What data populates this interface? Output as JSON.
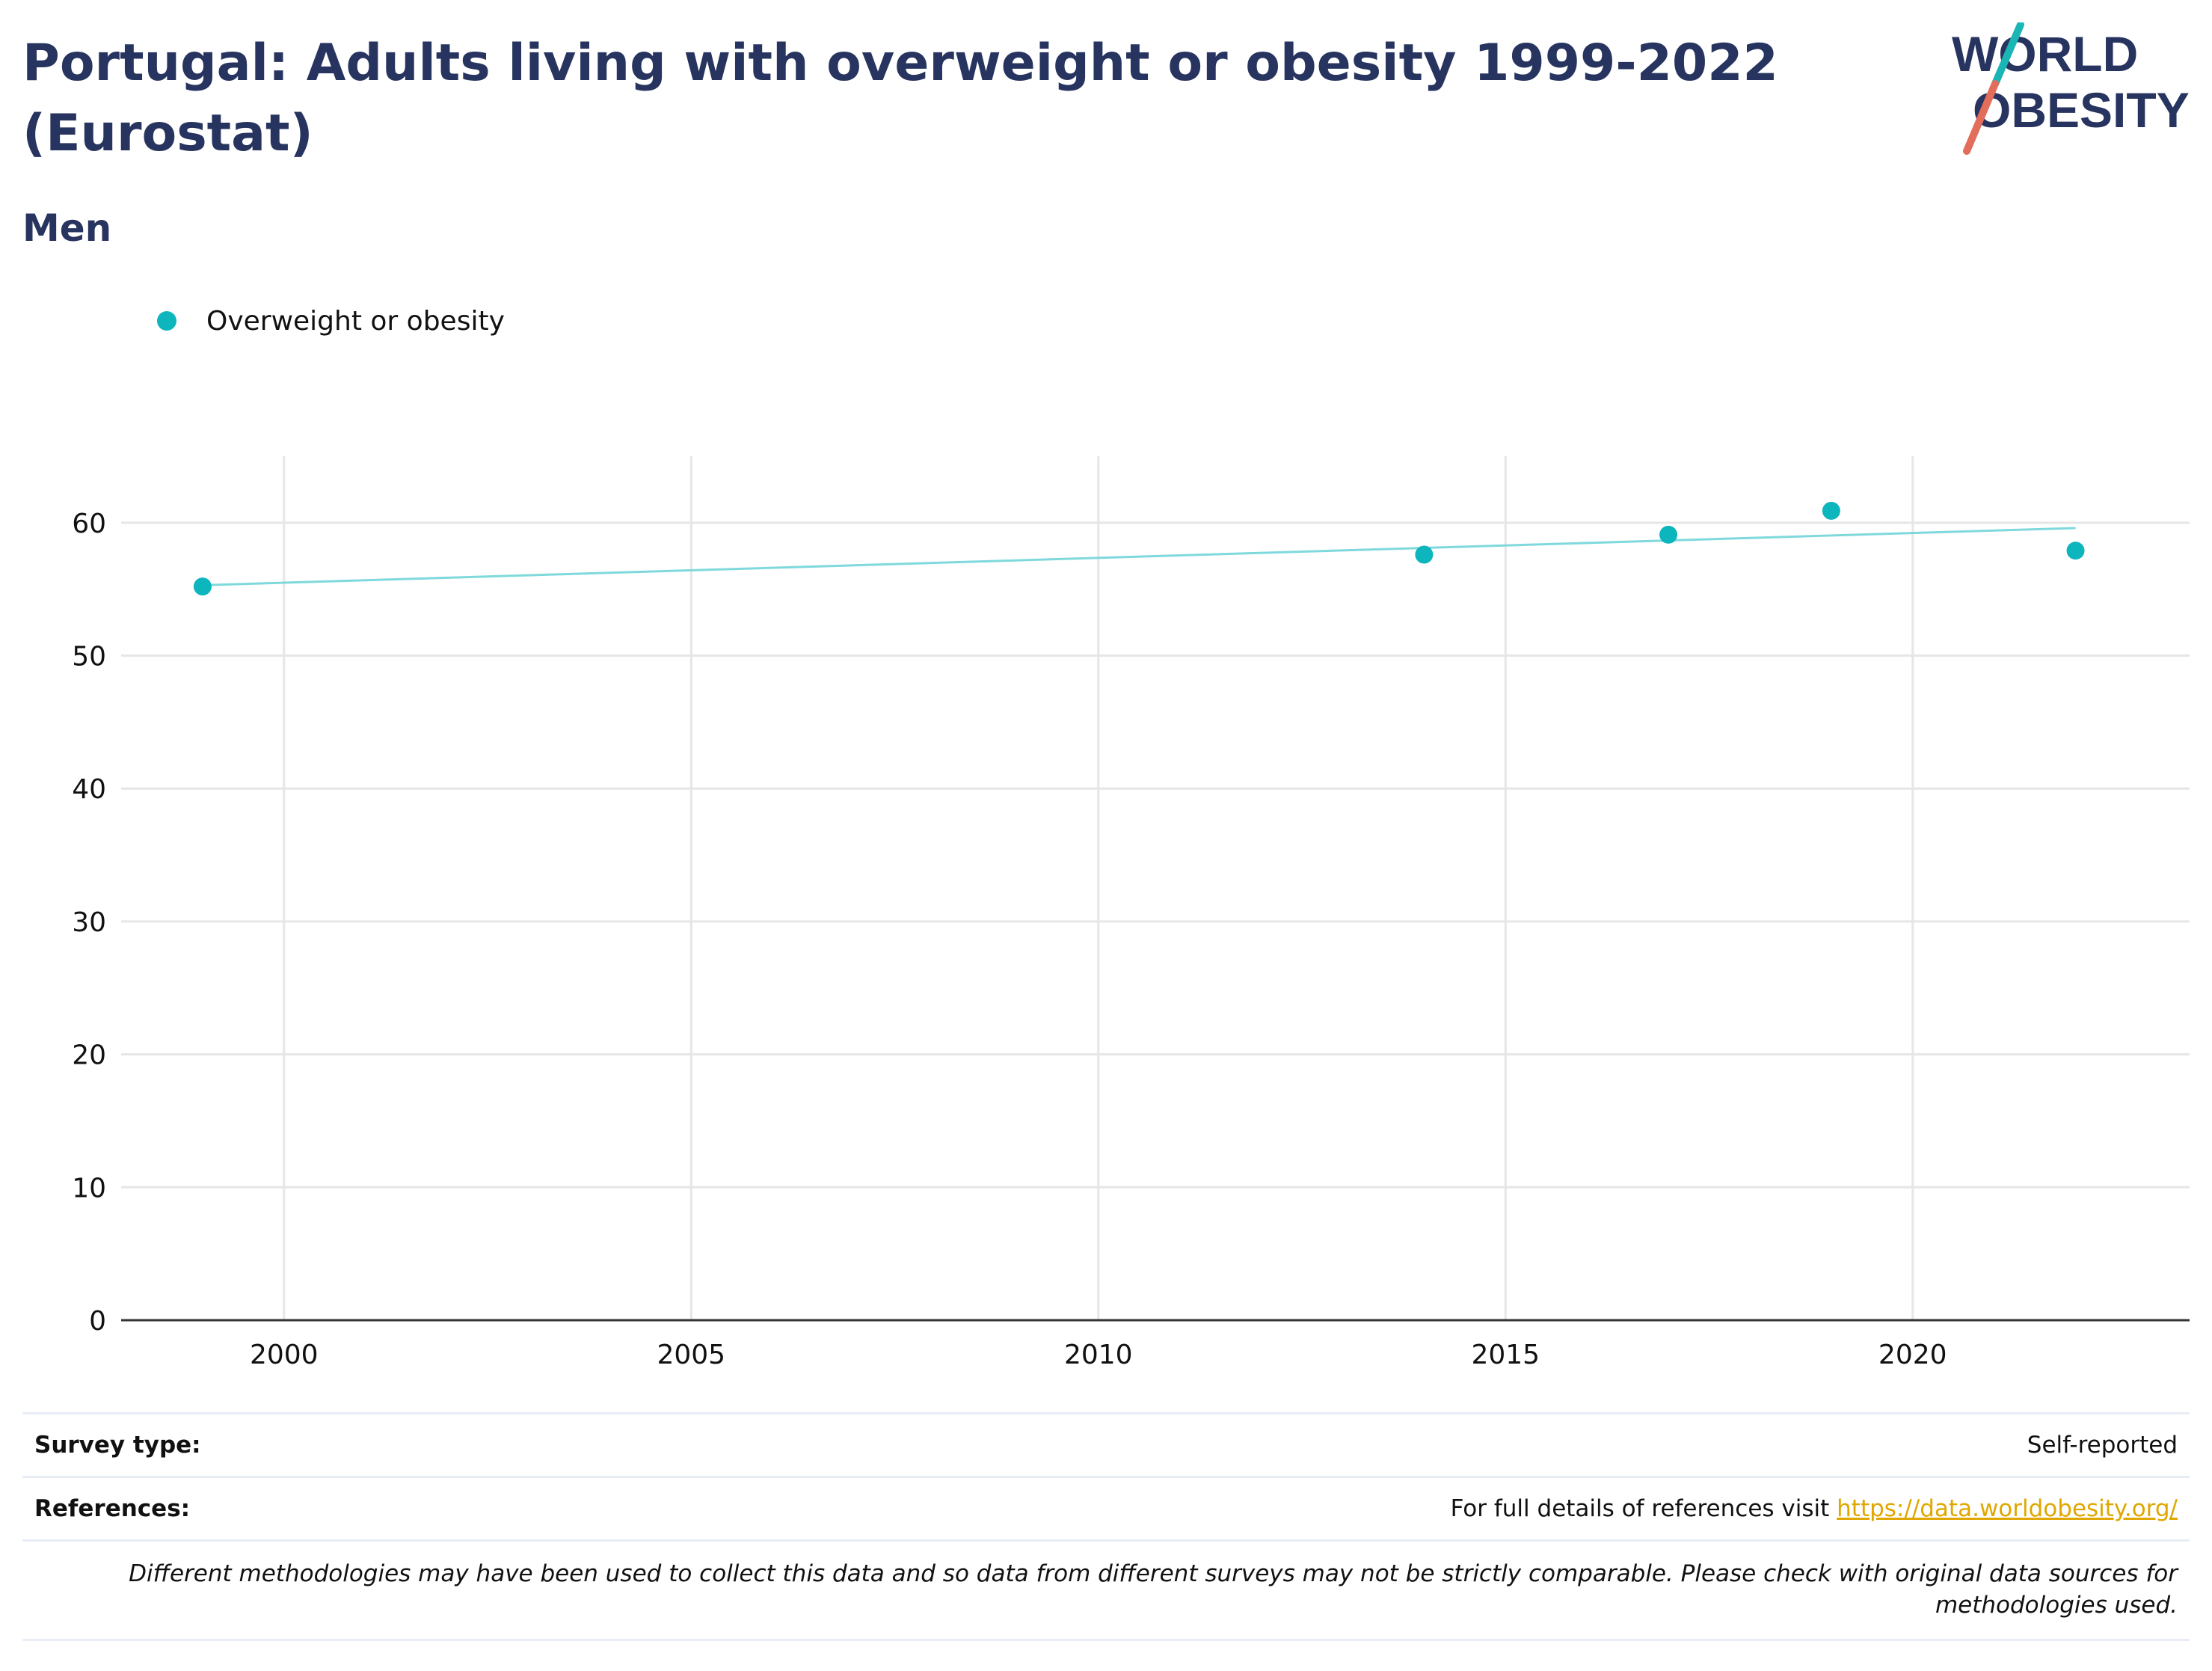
{
  "header": {
    "title": "Portugal: Adults living with overweight or obesity 1999-2022 (Eurostat)",
    "subtitle": "Men"
  },
  "logo": {
    "line1": "WORLD",
    "line2": "OBESITY",
    "colors": {
      "text": "#27345f",
      "slash_top": "#1bb5b5",
      "slash_bottom": "#e36d5b"
    }
  },
  "colors": {
    "accent": "#0db5bc",
    "trend_line": "#7fd9dc",
    "title": "#27345f",
    "link": "#e0a700",
    "grid": "#e6e6e6"
  },
  "chart_data": {
    "type": "scatter",
    "title": "",
    "xlabel": "",
    "ylabel": "",
    "legend_position": "top-left",
    "grid": true,
    "xlim": [
      1998,
      2023.4
    ],
    "ylim": [
      0,
      65
    ],
    "x_ticks": [
      2000,
      2005,
      2010,
      2015,
      2020
    ],
    "y_ticks": [
      0,
      10,
      20,
      30,
      40,
      50,
      60
    ],
    "series": [
      {
        "name": "Overweight or obesity",
        "points": [
          {
            "x": 1999,
            "y": 55.2
          },
          {
            "x": 2014,
            "y": 57.6
          },
          {
            "x": 2017,
            "y": 59.1
          },
          {
            "x": 2019,
            "y": 60.9
          },
          {
            "x": 2022,
            "y": 57.9
          }
        ]
      }
    ],
    "trend_line": [
      {
        "x": 1999,
        "y": 55.3
      },
      {
        "x": 2022,
        "y": 59.6
      }
    ]
  },
  "footer": {
    "survey_label": "Survey type:",
    "survey_value": "Self-reported",
    "references_label": "References:",
    "references_text": "For full details of references visit ",
    "references_link": "https://data.worldobesity.org/",
    "note": "Different methodologies may have been used to collect this data and so data from different surveys may not be strictly comparable. Please check with original data sources for methodologies used."
  }
}
